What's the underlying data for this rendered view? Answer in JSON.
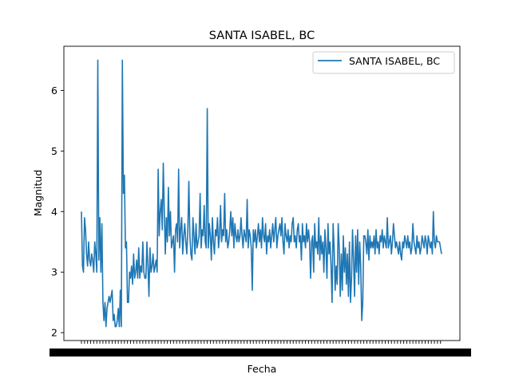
{
  "chart_data": {
    "type": "line",
    "title": "SANTA ISABEL, BC",
    "xlabel": "Fecha",
    "ylabel": "Magnitud",
    "ylim": [
      1.87,
      6.73
    ],
    "y_ticks": [
      2,
      3,
      4,
      5,
      6
    ],
    "legend": {
      "position": "top-right"
    },
    "x_tick_labels_note": "",
    "series": [
      {
        "name": "SANTA ISABEL, BC",
        "color": "#1f77b4",
        "values": [
          4.0,
          3.1,
          3.0,
          3.9,
          3.7,
          3.3,
          3.1,
          3.5,
          3.2,
          3.1,
          3.3,
          3.2,
          3.0,
          3.5,
          3.3,
          3.0,
          6.5,
          3.2,
          3.9,
          3.0,
          3.8,
          2.5,
          2.2,
          2.5,
          2.1,
          2.4,
          2.5,
          2.6,
          2.5,
          2.6,
          2.7,
          2.2,
          2.3,
          2.1,
          2.1,
          2.2,
          2.4,
          2.1,
          2.7,
          2.1,
          6.5,
          4.3,
          4.6,
          3.4,
          3.5,
          2.5,
          2.5,
          3.0,
          2.9,
          3.1,
          2.8,
          3.3,
          2.9,
          3.0,
          3.2,
          2.9,
          3.4,
          2.9,
          3.1,
          3.0,
          3.5,
          3.0,
          2.9,
          2.9,
          3.5,
          3.1,
          2.6,
          3.4,
          3.0,
          3.1,
          3.3,
          3.0,
          3.1,
          3.2,
          3.0,
          4.7,
          3.6,
          4.0,
          4.2,
          3.7,
          4.8,
          4.0,
          3.3,
          3.9,
          3.5,
          4.4,
          3.6,
          4.0,
          3.4,
          3.5,
          3.6,
          3.0,
          3.7,
          3.8,
          3.5,
          4.7,
          3.4,
          3.7,
          3.9,
          3.3,
          3.6,
          3.8,
          3.5,
          3.3,
          3.7,
          4.5,
          3.6,
          3.3,
          3.2,
          3.9,
          3.6,
          3.3,
          3.8,
          3.4,
          3.5,
          3.6,
          4.3,
          3.4,
          3.7,
          3.6,
          4.1,
          3.5,
          3.4,
          5.7,
          3.4,
          3.8,
          3.6,
          3.2,
          3.9,
          3.5,
          3.3,
          3.7,
          3.6,
          3.9,
          3.4,
          3.6,
          4.1,
          3.5,
          3.7,
          3.6,
          4.3,
          3.5,
          3.7,
          3.4,
          3.5,
          3.7,
          4.0,
          3.6,
          3.9,
          3.4,
          3.8,
          3.6,
          3.5,
          3.7,
          3.5,
          3.6,
          3.9,
          3.6,
          3.4,
          3.7,
          3.6,
          3.5,
          4.2,
          3.4,
          3.7,
          3.6,
          3.4,
          2.7,
          3.7,
          3.5,
          3.7,
          3.4,
          3.6,
          3.8,
          3.5,
          3.7,
          3.4,
          3.9,
          3.6,
          3.5,
          3.8,
          3.3,
          3.6,
          3.5,
          3.7,
          3.4,
          3.6,
          3.8,
          3.5,
          3.7,
          3.9,
          3.4,
          3.6,
          3.7,
          3.8,
          3.6,
          3.9,
          3.5,
          3.3,
          3.8,
          3.6,
          3.5,
          3.7,
          3.4,
          3.6,
          3.5,
          3.8,
          3.9,
          3.5,
          3.6,
          3.4,
          3.7,
          3.8,
          3.5,
          3.6,
          3.2,
          3.8,
          3.5,
          3.6,
          3.4,
          3.8,
          3.5,
          3.7,
          3.5,
          2.9,
          3.5,
          3.6,
          3.0,
          3.8,
          3.4,
          3.5,
          3.3,
          3.9,
          3.2,
          3.6,
          3.3,
          3.5,
          3.0,
          3.7,
          3.4,
          2.9,
          3.8,
          3.3,
          3.5,
          3.1,
          2.5,
          3.8,
          3.4,
          2.7,
          3.1,
          2.8,
          3.8,
          3.4,
          2.6,
          3.3,
          2.7,
          3.6,
          3.0,
          3.4,
          2.8,
          3.3,
          2.6,
          3.5,
          2.5,
          2.9,
          3.7,
          3.2,
          2.6,
          3.6,
          3.0,
          3.7,
          2.8,
          3.5,
          3.1,
          2.2,
          2.5,
          3.6,
          3.6,
          3.5,
          3.3,
          3.7,
          3.2,
          3.6,
          3.4,
          3.5,
          3.4,
          3.6,
          3.3,
          3.7,
          3.4,
          3.5,
          3.3,
          3.6,
          3.5,
          3.7,
          3.4,
          3.6,
          3.5,
          3.4,
          3.9,
          3.4,
          3.5,
          3.6,
          3.3,
          3.5,
          3.8,
          3.6,
          3.4,
          3.5,
          3.4,
          3.3,
          3.5,
          3.3,
          3.2,
          3.5,
          3.4,
          3.6,
          3.5,
          3.4,
          3.6,
          3.4,
          3.5,
          3.3,
          3.4,
          3.8,
          3.5,
          3.4,
          3.3,
          3.6,
          3.4,
          3.5,
          3.3,
          3.4,
          3.6,
          3.5,
          3.4,
          3.6,
          3.5,
          3.3,
          3.6,
          3.5,
          3.4,
          3.5,
          3.3,
          4.0,
          3.5,
          3.4,
          3.6,
          3.5,
          3.5,
          3.5,
          3.4,
          3.3
        ]
      }
    ]
  }
}
